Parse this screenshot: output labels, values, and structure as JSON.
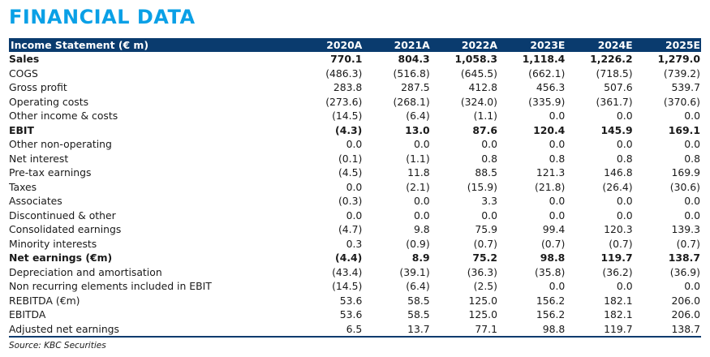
{
  "title": "FINANCIAL DATA",
  "table": {
    "header_label": "Income Statement (€ m)",
    "years": [
      "2020A",
      "2021A",
      "2022A",
      "2023E",
      "2024E",
      "2025E"
    ],
    "rows": [
      {
        "label": "Sales",
        "bold": true,
        "values": [
          "770.1",
          "804.3",
          "1,058.3",
          "1,118.4",
          "1,226.2",
          "1,279.0"
        ]
      },
      {
        "label": "COGS",
        "bold": false,
        "values": [
          "(486.3)",
          "(516.8)",
          "(645.5)",
          "(662.1)",
          "(718.5)",
          "(739.2)"
        ]
      },
      {
        "label": "Gross profit",
        "bold": false,
        "values": [
          "283.8",
          "287.5",
          "412.8",
          "456.3",
          "507.6",
          "539.7"
        ]
      },
      {
        "label": "Operating costs",
        "bold": false,
        "values": [
          "(273.6)",
          "(268.1)",
          "(324.0)",
          "(335.9)",
          "(361.7)",
          "(370.6)"
        ]
      },
      {
        "label": "Other income & costs",
        "bold": false,
        "values": [
          "(14.5)",
          "(6.4)",
          "(1.1)",
          "0.0",
          "0.0",
          "0.0"
        ]
      },
      {
        "label": "EBIT",
        "bold": true,
        "values": [
          "(4.3)",
          "13.0",
          "87.6",
          "120.4",
          "145.9",
          "169.1"
        ]
      },
      {
        "label": "Other non-operating",
        "bold": false,
        "values": [
          "0.0",
          "0.0",
          "0.0",
          "0.0",
          "0.0",
          "0.0"
        ]
      },
      {
        "label": "Net interest",
        "bold": false,
        "values": [
          "(0.1)",
          "(1.1)",
          "0.8",
          "0.8",
          "0.8",
          "0.8"
        ]
      },
      {
        "label": "Pre-tax earnings",
        "bold": false,
        "values": [
          "(4.5)",
          "11.8",
          "88.5",
          "121.3",
          "146.8",
          "169.9"
        ]
      },
      {
        "label": "Taxes",
        "bold": false,
        "values": [
          "0.0",
          "(2.1)",
          "(15.9)",
          "(21.8)",
          "(26.4)",
          "(30.6)"
        ]
      },
      {
        "label": "Associates",
        "bold": false,
        "values": [
          "(0.3)",
          "0.0",
          "3.3",
          "0.0",
          "0.0",
          "0.0"
        ]
      },
      {
        "label": "Discontinued & other",
        "bold": false,
        "values": [
          "0.0",
          "0.0",
          "0.0",
          "0.0",
          "0.0",
          "0.0"
        ]
      },
      {
        "label": "Consolidated earnings",
        "bold": false,
        "values": [
          "(4.7)",
          "9.8",
          "75.9",
          "99.4",
          "120.3",
          "139.3"
        ]
      },
      {
        "label": "Minority interests",
        "bold": false,
        "values": [
          "0.3",
          "(0.9)",
          "(0.7)",
          "(0.7)",
          "(0.7)",
          "(0.7)"
        ]
      },
      {
        "label": "Net earnings (€m)",
        "bold": true,
        "values": [
          "(4.4)",
          "8.9",
          "75.2",
          "98.8",
          "119.7",
          "138.7"
        ]
      },
      {
        "label": "Depreciation and amortisation",
        "bold": false,
        "values": [
          "(43.4)",
          "(39.1)",
          "(36.3)",
          "(35.8)",
          "(36.2)",
          "(36.9)"
        ]
      },
      {
        "label": "Non recurring elements included in EBIT",
        "bold": false,
        "values": [
          "(14.5)",
          "(6.4)",
          "(2.5)",
          "0.0",
          "0.0",
          "0.0"
        ]
      },
      {
        "label": "REBITDA (€m)",
        "bold": false,
        "values": [
          "53.6",
          "58.5",
          "125.0",
          "156.2",
          "182.1",
          "206.0"
        ]
      },
      {
        "label": "EBITDA",
        "bold": false,
        "values": [
          "53.6",
          "58.5",
          "125.0",
          "156.2",
          "182.1",
          "206.0"
        ]
      },
      {
        "label": "Adjusted net earnings",
        "bold": false,
        "values": [
          "6.5",
          "13.7",
          "77.1",
          "98.8",
          "119.7",
          "138.7"
        ]
      }
    ]
  },
  "source": "Source: KBC Securities",
  "colors": {
    "title": "#0aa0e6",
    "header_background": "#0a3b6e",
    "header_text": "#ffffff"
  }
}
